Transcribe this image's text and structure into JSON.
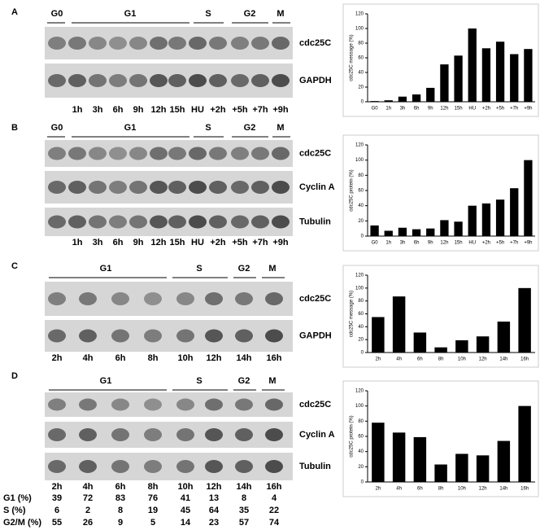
{
  "panels": [
    {
      "letter": "A",
      "phases": [
        "G0",
        "G1",
        "S",
        "G2",
        "M"
      ],
      "bands": [
        "cdc25C",
        "GAPDH"
      ],
      "lanes": [
        "1h",
        "3h",
        "6h",
        "9h",
        "12h",
        "15h",
        "HU",
        "+2h",
        "+5h",
        "+7h",
        "+9h"
      ]
    },
    {
      "letter": "B",
      "phases": [
        "G0",
        "G1",
        "S",
        "G2",
        "M"
      ],
      "bands": [
        "cdc25C",
        "Cyclin A",
        "Tubulin"
      ],
      "lanes": [
        "1h",
        "3h",
        "6h",
        "9h",
        "12h",
        "15h",
        "HU",
        "+2h",
        "+5h",
        "+7h",
        "+9h"
      ]
    },
    {
      "letter": "C",
      "phases": [
        "G1",
        "S",
        "G2",
        "M"
      ],
      "bands": [
        "cdc25C",
        "GAPDH"
      ],
      "lanes": [
        "2h",
        "4h",
        "6h",
        "8h",
        "10h",
        "12h",
        "14h",
        "16h"
      ]
    },
    {
      "letter": "D",
      "phases": [
        "G1",
        "S",
        "G2",
        "M"
      ],
      "bands": [
        "cdc25C",
        "Cyclin A",
        "Tubulin"
      ],
      "lanes": [
        "2h",
        "4h",
        "6h",
        "8h",
        "10h",
        "12h",
        "14h",
        "16h"
      ],
      "table": [
        {
          "label": "G1 (%)",
          "values": [
            39,
            72,
            83,
            76,
            41,
            13,
            8,
            4
          ]
        },
        {
          "label": "S (%)",
          "values": [
            6,
            2,
            8,
            19,
            45,
            64,
            35,
            22
          ]
        },
        {
          "label": "G2/M (%)",
          "values": [
            55,
            26,
            9,
            5,
            14,
            23,
            57,
            74
          ]
        }
      ]
    }
  ],
  "chart_data": [
    {
      "type": "bar",
      "ylabel": "cdc25C message (%)",
      "categories": [
        "G0",
        "1h",
        "3h",
        "6h",
        "9h",
        "12h",
        "15h",
        "HU",
        "+2h",
        "+5h",
        "+7h",
        "+9h"
      ],
      "values": [
        1,
        2,
        7,
        10,
        19,
        51,
        63,
        100,
        73,
        82,
        65,
        72
      ],
      "color": "#000000",
      "ylim": [
        0,
        120
      ],
      "yticks": [
        0,
        20,
        40,
        60,
        80,
        100,
        120
      ]
    },
    {
      "type": "bar",
      "ylabel": "cdc25C protein (%)",
      "categories": [
        "G0",
        "1h",
        "3h",
        "6h",
        "9h",
        "12h",
        "15h",
        "HU",
        "+2h",
        "+5h",
        "+7h",
        "+9h"
      ],
      "values": [
        14,
        7,
        11,
        9,
        10,
        21,
        19,
        40,
        43,
        48,
        63,
        100
      ],
      "color": "#000000",
      "ylim": [
        0,
        120
      ],
      "yticks": [
        0,
        20,
        40,
        60,
        80,
        100,
        120
      ]
    },
    {
      "type": "bar",
      "ylabel": "cdc25C message (%)",
      "categories": [
        "2h",
        "4h",
        "6h",
        "8h",
        "10h",
        "12h",
        "14h",
        "16h"
      ],
      "values": [
        55,
        87,
        31,
        8,
        19,
        25,
        48,
        100
      ],
      "color": "#000000",
      "ylim": [
        0,
        120
      ],
      "yticks": [
        0,
        20,
        40,
        60,
        80,
        100,
        120
      ]
    },
    {
      "type": "bar",
      "ylabel": "cdc25C protein (%)",
      "categories": [
        "2h",
        "4h",
        "6h",
        "8h",
        "10h",
        "12h",
        "14h",
        "16h"
      ],
      "values": [
        78,
        65,
        59,
        23,
        37,
        35,
        54,
        100
      ],
      "color": "#000000",
      "ylim": [
        0,
        120
      ],
      "yticks": [
        0,
        20,
        40,
        60,
        80,
        100,
        120
      ]
    }
  ]
}
